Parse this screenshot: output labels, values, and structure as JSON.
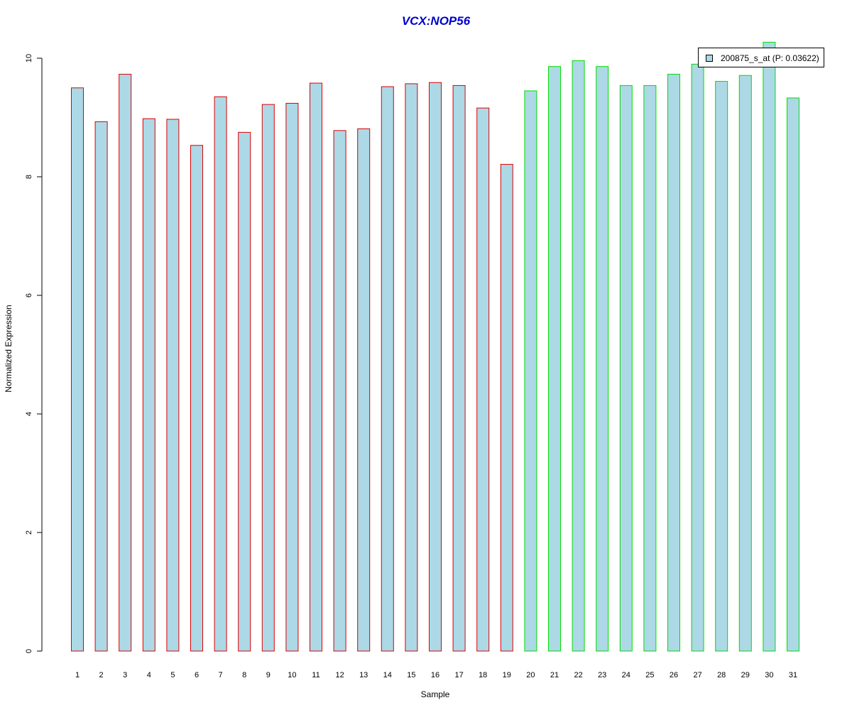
{
  "chart_data": {
    "type": "bar",
    "title": "VCX:NOP56",
    "xlabel": "Sample",
    "ylabel": "Normalized Expression",
    "categories": [
      "1",
      "2",
      "3",
      "4",
      "5",
      "6",
      "7",
      "8",
      "9",
      "10",
      "11",
      "12",
      "13",
      "14",
      "15",
      "16",
      "17",
      "18",
      "19",
      "20",
      "21",
      "22",
      "23",
      "24",
      "25",
      "26",
      "27",
      "28",
      "29",
      "30",
      "31"
    ],
    "series": [
      {
        "name": "200875_s_at (P: 0.03622)",
        "values": [
          9.5,
          8.93,
          9.73,
          8.98,
          8.97,
          8.53,
          9.35,
          8.75,
          9.22,
          9.24,
          9.58,
          8.78,
          8.81,
          9.52,
          9.57,
          9.59,
          9.54,
          9.16,
          8.21,
          9.45,
          9.86,
          9.96,
          9.86,
          9.54,
          9.54,
          9.73,
          9.9,
          9.61,
          9.71,
          10.27,
          9.33
        ]
      }
    ],
    "group_border_colors": [
      "#dd0000",
      "#dd0000",
      "#dd0000",
      "#dd0000",
      "#dd0000",
      "#dd0000",
      "#dd0000",
      "#dd0000",
      "#dd0000",
      "#dd0000",
      "#dd0000",
      "#dd0000",
      "#dd0000",
      "#dd0000",
      "#dd0000",
      "#dd0000",
      "#dd0000",
      "#dd0000",
      "#dd0000",
      "#00dd00",
      "#00dd00",
      "#00dd00",
      "#00dd00",
      "#00dd00",
      "#00dd00",
      "#00dd00",
      "#00dd00",
      "#00dd00",
      "#00dd00",
      "#00dd00",
      "#00dd00"
    ],
    "bar_fill": "#add8e6",
    "yticks": [
      0,
      2,
      4,
      6,
      8,
      10
    ],
    "ylim": [
      0,
      10
    ],
    "grid": false,
    "legend_position": "top-right"
  }
}
